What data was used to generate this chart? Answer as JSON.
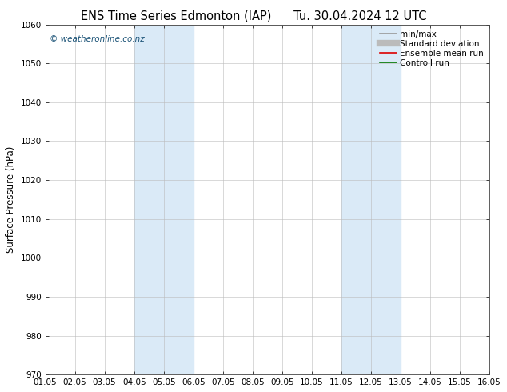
{
  "title_left": "ENS Time Series Edmonton (IAP)",
  "title_right": "Tu. 30.04.2024 12 UTC",
  "ylabel": "Surface Pressure (hPa)",
  "ylim": [
    970,
    1060
  ],
  "yticks": [
    970,
    980,
    990,
    1000,
    1010,
    1020,
    1030,
    1040,
    1050,
    1060
  ],
  "xtick_labels": [
    "01.05",
    "02.05",
    "03.05",
    "04.05",
    "05.05",
    "06.05",
    "07.05",
    "08.05",
    "09.05",
    "10.05",
    "11.05",
    "12.05",
    "13.05",
    "14.05",
    "15.05",
    "16.05"
  ],
  "num_xticks": 16,
  "shaded_regions": [
    {
      "xstart": 3,
      "xend": 5,
      "color": "#daeaf7"
    },
    {
      "xstart": 10,
      "xend": 12,
      "color": "#daeaf7"
    }
  ],
  "watermark": "© weatheronline.co.nz",
  "watermark_color": "#1a5276",
  "background_color": "#ffffff",
  "plot_bg_color": "#ffffff",
  "grid_color": "#bbbbbb",
  "legend_items": [
    {
      "label": "min/max",
      "color": "#999999",
      "lw": 1.2,
      "style": "solid"
    },
    {
      "label": "Standard deviation",
      "color": "#bbbbbb",
      "lw": 6,
      "style": "solid"
    },
    {
      "label": "Ensemble mean run",
      "color": "#dd0000",
      "lw": 1.2,
      "style": "solid"
    },
    {
      "label": "Controll run",
      "color": "#007700",
      "lw": 1.2,
      "style": "solid"
    }
  ],
  "title_fontsize": 10.5,
  "ylabel_fontsize": 8.5,
  "tick_fontsize": 7.5,
  "legend_fontsize": 7.5
}
